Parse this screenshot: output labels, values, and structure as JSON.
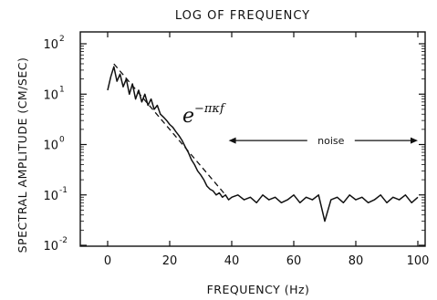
{
  "chart_data": {
    "type": "line",
    "title": "LOG OF FREQUENCY",
    "xlabel": "FREQUENCY (Hz)",
    "ylabel": "SPECTRAL AMPLITUDE (CM/SEC)",
    "xlim": [
      -10,
      100
    ],
    "ylim": [
      0.01,
      300
    ],
    "yscale": "log",
    "xticks": [
      0,
      20,
      40,
      60,
      80,
      100
    ],
    "xtick_labels": [
      "0",
      "20",
      "40",
      "60",
      "80",
      "100"
    ],
    "yticks": [
      0.01,
      0.1,
      1,
      10,
      100
    ],
    "ytick_labels": [
      {
        "base": "10",
        "exp": "-2"
      },
      {
        "base": "10",
        "exp": "-1"
      },
      {
        "base": "10",
        "exp": "0"
      },
      {
        "base": "10",
        "exp": "1"
      },
      {
        "base": "10",
        "exp": "2"
      }
    ],
    "grid": false,
    "series": [
      {
        "style": "solid",
        "x": [
          0,
          1,
          2,
          3,
          4,
          5,
          6,
          7,
          8,
          9,
          10,
          11,
          12,
          13,
          14,
          15,
          16,
          17,
          18,
          19,
          20,
          21,
          22,
          23,
          24,
          25,
          26,
          27,
          28,
          29,
          30,
          31,
          32,
          33,
          34,
          35,
          36,
          37,
          38,
          39,
          40,
          42,
          44,
          46,
          48,
          50,
          52,
          54,
          56,
          58,
          60,
          62,
          64,
          66,
          68,
          70,
          72,
          74,
          76,
          78,
          80,
          82,
          84,
          86,
          88,
          90,
          92,
          94,
          96,
          98,
          100
        ],
        "y": [
          12,
          22,
          35,
          18,
          25,
          14,
          20,
          10,
          16,
          8,
          12,
          7,
          10,
          6,
          8,
          5,
          6,
          4,
          3.5,
          3,
          2.5,
          2.2,
          1.8,
          1.5,
          1.2,
          0.9,
          0.7,
          0.5,
          0.4,
          0.3,
          0.25,
          0.2,
          0.15,
          0.13,
          0.12,
          0.1,
          0.11,
          0.09,
          0.1,
          0.08,
          0.09,
          0.1,
          0.08,
          0.09,
          0.07,
          0.1,
          0.08,
          0.09,
          0.07,
          0.08,
          0.1,
          0.07,
          0.09,
          0.08,
          0.1,
          0.03,
          0.08,
          0.09,
          0.07,
          0.1,
          0.08,
          0.09,
          0.07,
          0.08,
          0.1,
          0.07,
          0.09,
          0.08,
          0.1,
          0.07,
          0.09
        ]
      },
      {
        "style": "dashed",
        "x": [
          2,
          38
        ],
        "y": [
          40,
          0.1
        ]
      }
    ],
    "annotations": [
      {
        "text": "noise",
        "x": 72,
        "y": 1.2
      },
      {
        "text": "e^{-πκf}",
        "x": 30,
        "y": 3
      }
    ],
    "noise_arrow": {
      "from": 39,
      "to": 100,
      "y": 1.2
    },
    "equation": {
      "base": "e",
      "exp": "−πκf"
    }
  }
}
